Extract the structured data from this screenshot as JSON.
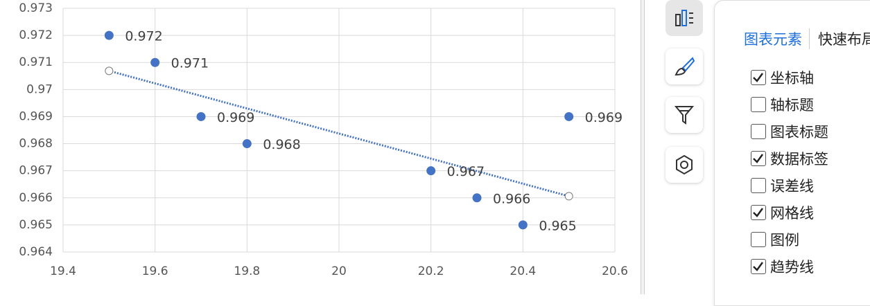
{
  "chart_data": {
    "type": "scatter",
    "x": [
      19.5,
      19.6,
      19.7,
      19.8,
      20.2,
      20.3,
      20.4,
      20.5
    ],
    "values": [
      0.972,
      0.971,
      0.969,
      0.968,
      0.967,
      0.966,
      0.965,
      0.969
    ],
    "color": "#4472c4",
    "xlim": [
      19.4,
      20.6
    ],
    "xticks": [
      19.4,
      19.6,
      19.8,
      20,
      20.2,
      20.4,
      20.6
    ],
    "ylim": [
      0.964,
      0.973
    ],
    "yticks": [
      0.964,
      0.965,
      0.966,
      0.967,
      0.968,
      0.969,
      0.97,
      0.971,
      0.972,
      0.973
    ],
    "grid": true,
    "trendline": true,
    "data_labels": true
  },
  "panel": {
    "tabs": [
      "图表元素",
      "快速布局"
    ],
    "items": [
      {
        "label": "坐标轴",
        "checked": true
      },
      {
        "label": "轴标题",
        "checked": false
      },
      {
        "label": "图表标题",
        "checked": false
      },
      {
        "label": "数据标签",
        "checked": true
      },
      {
        "label": "误差线",
        "checked": false
      },
      {
        "label": "网格线",
        "checked": true
      },
      {
        "label": "图例",
        "checked": false
      },
      {
        "label": "趋势线",
        "checked": true
      }
    ]
  }
}
